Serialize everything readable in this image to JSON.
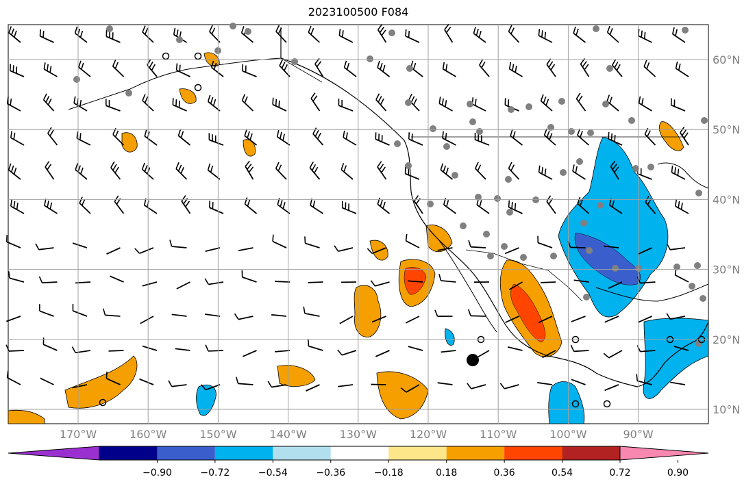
{
  "title": "2023100500 F084",
  "map": {
    "lon_labels": [
      "170°W",
      "160°W",
      "150°W",
      "140°W",
      "130°W",
      "120°W",
      "110°W",
      "100°W",
      "90°W"
    ],
    "lat_labels": [
      "60°N",
      "50°N",
      "40°N",
      "30°N",
      "20°N",
      "10°N"
    ],
    "lon_values": [
      -170,
      -160,
      -150,
      -140,
      -130,
      -120,
      -110,
      -100,
      -90
    ],
    "lat_values": [
      60,
      50,
      40,
      30,
      20,
      10
    ],
    "grid": true
  },
  "colorbar": {
    "tick_labels": [
      "−0.90",
      "−0.72",
      "−0.54",
      "−0.36",
      "−0.18",
      "0.18",
      "0.36",
      "0.54",
      "0.72",
      "0.90"
    ],
    "colors": [
      "#9b30d0",
      "#00008b",
      "#3a5fcd",
      "#00b2ee",
      "#b2dfee",
      "#ffffff",
      "#fde68a",
      "#f5a000",
      "#ff4500",
      "#b22222",
      "#f888b0"
    ],
    "extend": "both"
  },
  "colors": {
    "land_outline": "#000000",
    "gridline": "#a0a0a0",
    "station_dot": "#808080"
  }
}
